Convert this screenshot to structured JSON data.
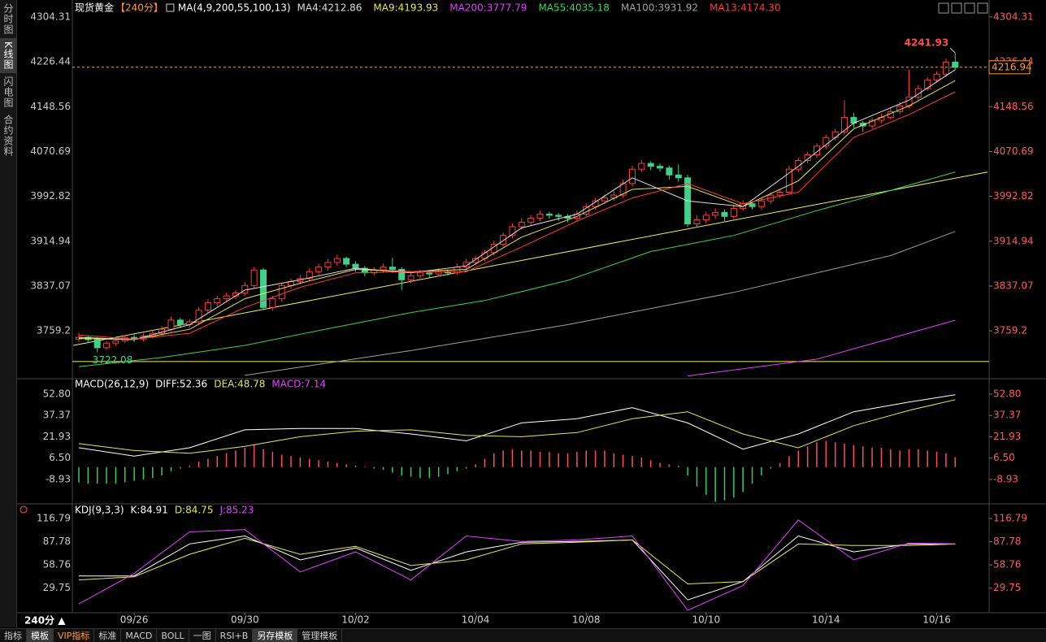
{
  "toolbar": {
    "side_tabs": [
      "分时图",
      "K线图",
      "闪电图",
      "合约资料"
    ],
    "period_selector": "240分 ▲",
    "bottom_tabs": [
      "指标",
      "模板",
      "VIP指标",
      "标准",
      "MACD",
      "BOLL",
      "一图",
      "RSI+B",
      "另存模板",
      "管理模板"
    ]
  },
  "chart_data": [
    {
      "type": "candlestick",
      "title": "现货黄金",
      "period": "【240分】",
      "ma_params": "MA(4,9,200,55,100,13)",
      "ylim": [
        3679,
        4322.5
      ],
      "yticks": [
        4304.31,
        4226.44,
        4148.56,
        4070.69,
        3992.82,
        3914.94,
        3837.07,
        3759.2
      ],
      "up_color": "#ff3b3b",
      "down_color": "#3fd08a",
      "last_price": 4216.94,
      "last_price_color": "#ff9a2e",
      "categories": [
        null,
        null,
        null,
        null,
        null,
        null,
        "09/26",
        null,
        null,
        null,
        null,
        null,
        null,
        null,
        null,
        null,
        null,
        null,
        "09/30",
        null,
        null,
        null,
        null,
        null,
        null,
        null,
        null,
        null,
        null,
        null,
        "10/02",
        null,
        null,
        null,
        null,
        null,
        null,
        null,
        null,
        null,
        null,
        null,
        null,
        "10/04",
        null,
        null,
        null,
        null,
        null,
        null,
        null,
        null,
        null,
        null,
        null,
        "10/08",
        null,
        null,
        null,
        null,
        null,
        null,
        null,
        null,
        null,
        null,
        null,
        null,
        "10/10",
        null,
        null,
        null,
        null,
        null,
        null,
        null,
        null,
        null,
        null,
        null,
        null,
        "10/14",
        null,
        null,
        null,
        null,
        null,
        null,
        null,
        null,
        null,
        null,
        null,
        "10/16",
        null,
        null
      ],
      "ohlc": [
        [
          3745,
          3756,
          3740,
          3748
        ],
        [
          3748,
          3752,
          3738,
          3744
        ],
        [
          3744,
          3748,
          3722.08,
          3730
        ],
        [
          3730,
          3742,
          3726,
          3738
        ],
        [
          3738,
          3748,
          3734,
          3742
        ],
        [
          3742,
          3752,
          3738,
          3748
        ],
        [
          3748,
          3753,
          3740,
          3745
        ],
        [
          3745,
          3755,
          3741,
          3750
        ],
        [
          3750,
          3760,
          3746,
          3755
        ],
        [
          3755,
          3768,
          3751,
          3762
        ],
        [
          3762,
          3784,
          3758,
          3778
        ],
        [
          3778,
          3782,
          3764,
          3770
        ],
        [
          3770,
          3780,
          3765,
          3775
        ],
        [
          3775,
          3800,
          3771,
          3795
        ],
        [
          3795,
          3814,
          3790,
          3808
        ],
        [
          3808,
          3820,
          3802,
          3815
        ],
        [
          3815,
          3826,
          3810,
          3820
        ],
        [
          3820,
          3830,
          3814,
          3825
        ],
        [
          3825,
          3844,
          3820,
          3838
        ],
        [
          3838,
          3870,
          3832,
          3865
        ],
        [
          3865,
          3868,
          3795,
          3800
        ],
        [
          3800,
          3820,
          3794,
          3815
        ],
        [
          3815,
          3842,
          3810,
          3838
        ],
        [
          3838,
          3850,
          3832,
          3845
        ],
        [
          3845,
          3856,
          3840,
          3850
        ],
        [
          3850,
          3868,
          3846,
          3862
        ],
        [
          3862,
          3876,
          3856,
          3870
        ],
        [
          3870,
          3884,
          3864,
          3878
        ],
        [
          3878,
          3892,
          3872,
          3885
        ],
        [
          3885,
          3888,
          3870,
          3875
        ],
        [
          3875,
          3880,
          3862,
          3868
        ],
        [
          3868,
          3872,
          3854,
          3860
        ],
        [
          3860,
          3870,
          3856,
          3865
        ],
        [
          3865,
          3876,
          3860,
          3870
        ],
        [
          3870,
          3886,
          3860,
          3866
        ],
        [
          3866,
          3870,
          3830,
          3848
        ],
        [
          3848,
          3860,
          3842,
          3855
        ],
        [
          3855,
          3865,
          3850,
          3860
        ],
        [
          3860,
          3864,
          3852,
          3858
        ],
        [
          3858,
          3868,
          3854,
          3862
        ],
        [
          3862,
          3866,
          3855,
          3860
        ],
        [
          3860,
          3876,
          3856,
          3870
        ],
        [
          3870,
          3884,
          3865,
          3878
        ],
        [
          3878,
          3890,
          3873,
          3885
        ],
        [
          3885,
          3900,
          3880,
          3895
        ],
        [
          3895,
          3916,
          3890,
          3910
        ],
        [
          3910,
          3930,
          3905,
          3925
        ],
        [
          3925,
          3946,
          3920,
          3940
        ],
        [
          3940,
          3955,
          3935,
          3948
        ],
        [
          3948,
          3960,
          3942,
          3955
        ],
        [
          3955,
          3968,
          3950,
          3962
        ],
        [
          3962,
          3966,
          3954,
          3960
        ],
        [
          3960,
          3964,
          3950,
          3958
        ],
        [
          3958,
          3962,
          3948,
          3955
        ],
        [
          3955,
          3968,
          3950,
          3962
        ],
        [
          3962,
          3980,
          3958,
          3975
        ],
        [
          3975,
          3990,
          3970,
          3985
        ],
        [
          3985,
          3996,
          3980,
          3990
        ],
        [
          3990,
          4002,
          3985,
          3995
        ],
        [
          3995,
          4022,
          3990,
          4015
        ],
        [
          4015,
          4046,
          4010,
          4040
        ],
        [
          4040,
          4056,
          4035,
          4050
        ],
        [
          4050,
          4054,
          4038,
          4045
        ],
        [
          4045,
          4050,
          4036,
          4042
        ],
        [
          4042,
          4046,
          4022,
          4030
        ],
        [
          4030,
          4048,
          4018,
          4025
        ],
        [
          4025,
          4030,
          3940,
          3945
        ],
        [
          3945,
          3960,
          3938,
          3952
        ],
        [
          3952,
          3966,
          3946,
          3960
        ],
        [
          3960,
          3972,
          3954,
          3965
        ],
        [
          3965,
          3970,
          3950,
          3958
        ],
        [
          3958,
          3978,
          3954,
          3972
        ],
        [
          3972,
          3986,
          3968,
          3980
        ],
        [
          3980,
          3984,
          3970,
          3975
        ],
        [
          3975,
          3990,
          3970,
          3985
        ],
        [
          3985,
          4000,
          3980,
          3995
        ],
        [
          3995,
          4006,
          3990,
          4000
        ],
        [
          4000,
          4046,
          3996,
          4040
        ],
        [
          4040,
          4060,
          4035,
          4055
        ],
        [
          4055,
          4070,
          4050,
          4065
        ],
        [
          4065,
          4085,
          4060,
          4080
        ],
        [
          4080,
          4100,
          4075,
          4095
        ],
        [
          4095,
          4110,
          4090,
          4105
        ],
        [
          4105,
          4160,
          4100,
          4130
        ],
        [
          4130,
          4138,
          4112,
          4120
        ],
        [
          4120,
          4124,
          4105,
          4115
        ],
        [
          4115,
          4130,
          4110,
          4125
        ],
        [
          4125,
          4136,
          4120,
          4130
        ],
        [
          4130,
          4146,
          4126,
          4140
        ],
        [
          4140,
          4156,
          4136,
          4150
        ],
        [
          4150,
          4212,
          4146,
          4165
        ],
        [
          4165,
          4186,
          4160,
          4180
        ],
        [
          4180,
          4200,
          4176,
          4195
        ],
        [
          4195,
          4210,
          4190,
          4205
        ],
        [
          4205,
          4232,
          4200,
          4226
        ],
        [
          4226,
          4241.93,
          4212,
          4216.94
        ]
      ],
      "series": [
        {
          "name": "MA4:4212.86",
          "color": "#dcdcdc",
          "x": [
            0,
            6,
            12,
            18,
            24,
            30,
            36,
            42,
            48,
            54,
            60,
            66,
            72,
            78,
            84,
            90,
            95
          ],
          "values": [
            3748,
            3744,
            3770,
            3830,
            3848,
            3868,
            3860,
            3872,
            3938,
            3962,
            4025,
            3985,
            3975,
            4045,
            4120,
            4160,
            4212.86
          ]
        },
        {
          "name": "MA9:4193.93",
          "color": "#e6e64c",
          "x": [
            0,
            6,
            12,
            18,
            24,
            30,
            36,
            42,
            48,
            54,
            60,
            66,
            72,
            78,
            84,
            90,
            95
          ],
          "values": [
            3746,
            3744,
            3762,
            3815,
            3842,
            3866,
            3862,
            3866,
            3922,
            3958,
            4005,
            4010,
            3975,
            4020,
            4110,
            4150,
            4193.93
          ]
        },
        {
          "name": "MA200:3777.79",
          "color": "#e040fb",
          "x": [
            66,
            80,
            95
          ],
          "values": [
            3681,
            3710,
            3777.79
          ]
        },
        {
          "name": "MA55:4035.18",
          "color": "#39d353",
          "x": [
            0,
            9,
            18,
            27,
            36,
            44,
            53,
            62,
            71,
            80,
            88,
            95
          ],
          "values": [
            3697,
            3713,
            3734,
            3763,
            3791,
            3812,
            3847,
            3897,
            3925,
            3968,
            4003,
            4035.18
          ]
        },
        {
          "name": "MA100:3931.92",
          "color": "#a0a0a0",
          "x": [
            18,
            36,
            53,
            71,
            88,
            95
          ],
          "values": [
            3682,
            3725,
            3770,
            3826,
            3890,
            3931.92
          ]
        },
        {
          "name": "MA13:4174.30",
          "color": "#ff3a3a",
          "x": [
            0,
            6,
            12,
            18,
            24,
            30,
            36,
            42,
            48,
            54,
            60,
            66,
            72,
            78,
            84,
            90,
            95
          ],
          "values": [
            3752,
            3745,
            3755,
            3800,
            3835,
            3860,
            3862,
            3862,
            3905,
            3950,
            3990,
            4015,
            3980,
            4000,
            4095,
            4135,
            4174.3
          ]
        }
      ],
      "trendline": {
        "color": "#f0f060",
        "x": [
          -0.6,
          98.5
        ],
        "values": [
          3734,
          4035
        ]
      },
      "hline": 3706,
      "hline_color": "#f0f060"
    },
    {
      "type": "macd",
      "title": "MACD(26,12,9)",
      "ylim": [
        -25.4,
        61.6
      ],
      "yticks": [
        {
          "value": 52.8,
          "label": "52.80"
        },
        37.37,
        21.93,
        {
          "value": 6.5,
          "label": "6.50"
        },
        -8.93
      ],
      "histogram": {
        "name": "MACD:7.14",
        "legend_color": "#e040fb",
        "up_color": "#ff4d5e",
        "down_color": "#2ecc71",
        "values": [
          -11,
          -12,
          -12,
          -12,
          -12,
          -11,
          -10,
          -9,
          -8,
          -6,
          -3,
          -1,
          1,
          4,
          6,
          8,
          10,
          12,
          14,
          16,
          13,
          11,
          9,
          8,
          7,
          6,
          5,
          4,
          3,
          2,
          1,
          0.5,
          -1,
          -2,
          -4,
          -6,
          -7,
          -8,
          -8,
          -7,
          -5,
          -3,
          -1,
          2,
          6,
          10,
          12,
          13,
          12,
          12,
          11,
          11,
          10,
          10,
          11,
          12,
          12,
          12,
          10,
          9,
          8,
          7,
          5,
          3,
          2,
          1,
          -6,
          -14,
          -20,
          -25,
          -24,
          -22,
          -18,
          -12,
          -6,
          -1,
          3,
          8,
          12,
          15,
          18,
          19,
          18,
          17,
          16,
          15,
          14,
          14,
          13,
          12,
          13,
          13,
          12,
          11,
          10,
          7.14
        ]
      },
      "series": [
        {
          "name": "DIFF:52.36",
          "color": "#ffffff",
          "x": [
            0,
            6,
            12,
            18,
            24,
            30,
            36,
            42,
            48,
            54,
            60,
            66,
            72,
            78,
            84,
            90,
            95
          ],
          "values": [
            14,
            8,
            14,
            27,
            28,
            28,
            24,
            19,
            32,
            35,
            43,
            32,
            13,
            24,
            40,
            47,
            52.36
          ]
        },
        {
          "name": "DEA:48.78",
          "color": "#e6e64c",
          "x": [
            0,
            6,
            12,
            18,
            24,
            30,
            36,
            42,
            48,
            54,
            60,
            66,
            72,
            78,
            84,
            90,
            95
          ],
          "values": [
            17,
            12,
            10,
            15,
            22,
            26,
            27,
            23,
            22,
            25,
            35,
            40,
            24,
            14,
            30,
            41,
            48.78
          ]
        }
      ]
    },
    {
      "type": "line",
      "title": "KDJ(9,3,3)",
      "ylim": [
        1,
        130
      ],
      "yticks": [
        116.79,
        87.78,
        58.76,
        29.75
      ],
      "series": [
        {
          "name": "K:84.91",
          "color": "#ffffff",
          "x": [
            0,
            6,
            12,
            18,
            24,
            30,
            36,
            42,
            48,
            54,
            60,
            66,
            72,
            78,
            84,
            90,
            95
          ],
          "values": [
            45,
            45,
            85,
            95,
            65,
            80,
            52,
            75,
            87,
            88,
            90,
            15,
            38,
            95,
            75,
            85,
            84.91
          ]
        },
        {
          "name": "D:84.75",
          "color": "#e6e64c",
          "x": [
            0,
            6,
            12,
            18,
            24,
            30,
            36,
            42,
            48,
            54,
            60,
            66,
            72,
            78,
            84,
            90,
            95
          ],
          "values": [
            40,
            44,
            72,
            92,
            72,
            82,
            58,
            65,
            85,
            87,
            90,
            35,
            38,
            85,
            83,
            83,
            84.75
          ]
        },
        {
          "name": "J:85.23",
          "color": "#e040fb",
          "x": [
            0,
            6,
            12,
            18,
            24,
            30,
            36,
            42,
            48,
            54,
            60,
            66,
            72,
            78,
            84,
            90,
            95
          ],
          "values": [
            10,
            48,
            100,
            103,
            50,
            75,
            40,
            95,
            88,
            90,
            95,
            2,
            33,
            115,
            65,
            86,
            85.23
          ]
        }
      ]
    }
  ]
}
